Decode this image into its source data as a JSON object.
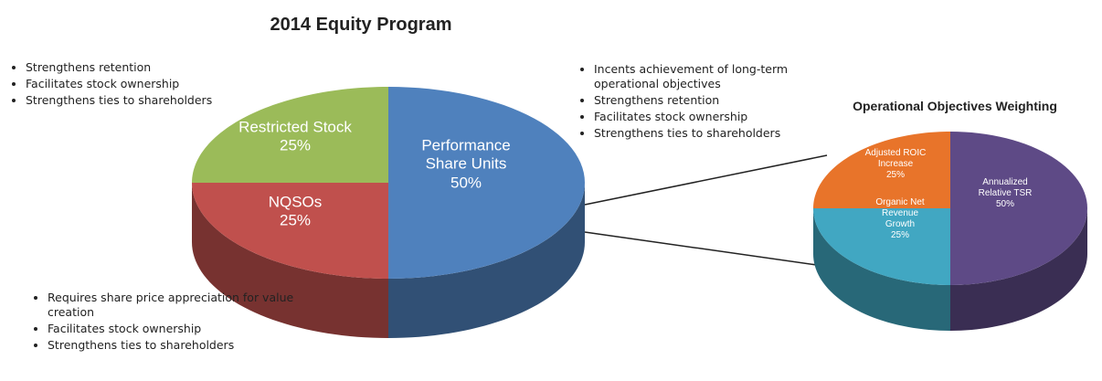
{
  "chart_data": [
    {
      "type": "pie",
      "title": "2014 Equity Program",
      "categories": [
        "Restricted Stock",
        "NQSOs",
        "Performance Share Units"
      ],
      "values": [
        25,
        25,
        50
      ],
      "value_labels": [
        "25%",
        "25%",
        "50%"
      ],
      "colors": [
        "#9bbb59",
        "#c0504d",
        "#4f81bd"
      ],
      "annotations": [
        [
          "Strengthens retention",
          "Facilitates stock ownership",
          "Strengthens ties to shareholders"
        ],
        [
          "Incents achievement of long-term operational objectives",
          "Strengthens retention",
          "Facilitates stock ownership",
          "Strengthens ties to shareholders"
        ],
        [
          "Requires share price appreciation for value creation",
          "Facilitates stock ownership",
          "Strengthens ties to shareholders"
        ]
      ]
    },
    {
      "type": "pie",
      "title": "Operational Objectives Weighting",
      "categories": [
        "Adjusted ROIC Increase",
        "Organic Net Revenue Growth",
        "Annualized Relative TSR"
      ],
      "values": [
        25,
        25,
        50
      ],
      "value_labels": [
        "25%",
        "25%",
        "50%"
      ],
      "colors": [
        "#e8742a",
        "#41a7c2",
        "#5e4a86"
      ]
    }
  ]
}
